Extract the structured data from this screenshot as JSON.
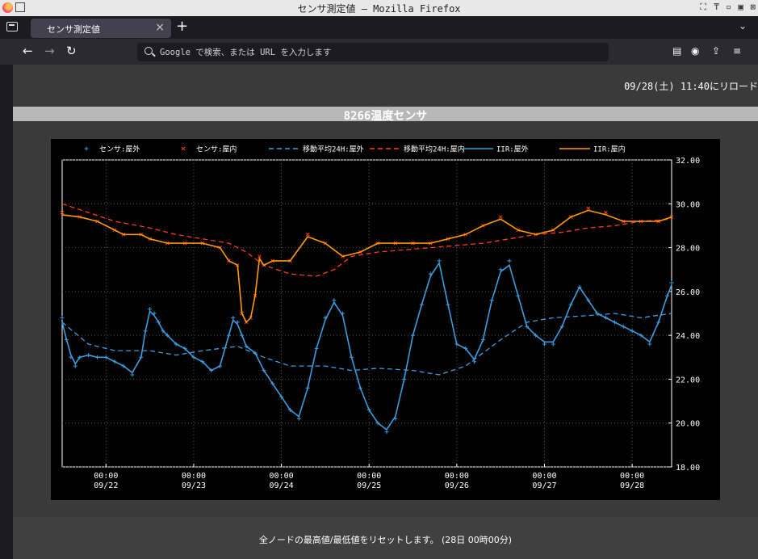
{
  "window": {
    "title": "センサ測定値 — Mozilla Firefox",
    "controls": [
      "⛶",
      "₸",
      "▫",
      "▣",
      "⊠"
    ]
  },
  "tabs": [
    {
      "label": "センサ測定値",
      "active": true
    }
  ],
  "newtab_label": "+",
  "urlbar": {
    "placeholder": "Google で検索、または URL を入力します",
    "icon": "search-icon"
  },
  "toolbar_icons": [
    "reader-icon",
    "account-icon",
    "extensions-icon",
    "menu-icon"
  ],
  "page": {
    "reload_info": "09/28(土) 11:40にリロード",
    "heading": "8266温度センサ",
    "footer_text": "全ノードの最高値/最低値をリセットします。 (28日 00時00分)"
  },
  "colors": {
    "outdoor_sensor": "#3b9ddd",
    "indoor_sensor": "#ff3a1a",
    "iir_indoor": "#ff9a00",
    "background": "#000000"
  },
  "chart_data": {
    "type": "line",
    "title": "",
    "xlabel": "",
    "ylabel": "",
    "ylim": [
      18,
      32
    ],
    "y_ticks": [
      "18.00",
      "20.00",
      "22.00",
      "24.00",
      "26.00",
      "28.00",
      "30.00",
      "32.00"
    ],
    "x_ticks": [
      {
        "x": 0.5,
        "line1": "00:00",
        "line2": "09/22"
      },
      {
        "x": 1.5,
        "line1": "00:00",
        "line2": "09/23"
      },
      {
        "x": 2.5,
        "line1": "00:00",
        "line2": "09/24"
      },
      {
        "x": 3.5,
        "line1": "00:00",
        "line2": "09/25"
      },
      {
        "x": 4.5,
        "line1": "00:00",
        "line2": "09/26"
      },
      {
        "x": 5.5,
        "line1": "00:00",
        "line2": "09/27"
      },
      {
        "x": 6.5,
        "line1": "00:00",
        "line2": "09/28"
      }
    ],
    "xlim": [
      0,
      6.95
    ],
    "grid": true,
    "legend_position": "top",
    "series": [
      {
        "name": "センサ:屋外",
        "style": "points",
        "marker": "+",
        "color": "#3b9ddd",
        "x": [
          0,
          0.05,
          0.1,
          0.15,
          0.2,
          0.3,
          0.4,
          0.5,
          0.6,
          0.7,
          0.8,
          0.9,
          0.95,
          1.0,
          1.05,
          1.1,
          1.15,
          1.2,
          1.3,
          1.4,
          1.5,
          1.6,
          1.7,
          1.8,
          1.9,
          1.95,
          2.0,
          2.05,
          2.1,
          2.2,
          2.3,
          2.4,
          2.5,
          2.6,
          2.7,
          2.8,
          2.9,
          3.0,
          3.1,
          3.2,
          3.3,
          3.4,
          3.5,
          3.6,
          3.7,
          3.8,
          3.9,
          4.0,
          4.1,
          4.2,
          4.3,
          4.4,
          4.5,
          4.6,
          4.7,
          4.8,
          4.9,
          5.0,
          5.1,
          5.2,
          5.3,
          5.4,
          5.5,
          5.6,
          5.7,
          5.8,
          5.9,
          6.0,
          6.1,
          6.2,
          6.3,
          6.4,
          6.5,
          6.6,
          6.7,
          6.8,
          6.9,
          6.95
        ],
        "y": [
          24.8,
          23.8,
          23.0,
          22.6,
          23.0,
          23.1,
          23.0,
          23.0,
          22.8,
          22.6,
          22.2,
          23.0,
          24.2,
          25.2,
          25.0,
          24.6,
          24.2,
          24.0,
          23.6,
          23.4,
          23.0,
          22.8,
          22.4,
          22.6,
          24.0,
          24.8,
          24.6,
          24.0,
          23.5,
          23.2,
          22.4,
          21.8,
          21.2,
          20.6,
          20.2,
          21.6,
          23.4,
          24.8,
          25.6,
          25.0,
          23.0,
          21.6,
          20.6,
          20.0,
          19.6,
          20.2,
          22.0,
          24.0,
          25.4,
          26.8,
          27.4,
          25.4,
          23.6,
          23.4,
          22.8,
          23.8,
          25.6,
          27.0,
          27.4,
          25.8,
          24.4,
          24.0,
          23.6,
          23.6,
          24.4,
          25.4,
          26.2,
          25.6,
          25.0,
          24.8,
          24.6,
          24.4,
          24.2,
          24.0,
          23.6,
          24.6,
          25.8,
          26.4
        ]
      },
      {
        "name": "センサ:屋内",
        "style": "points",
        "marker": "x",
        "color": "#ff3a1a",
        "x": [
          0,
          0.2,
          0.4,
          0.6,
          0.7,
          0.9,
          1.0,
          1.2,
          1.4,
          1.6,
          1.8,
          1.9,
          2.0,
          2.05,
          2.1,
          2.15,
          2.2,
          2.25,
          2.3,
          2.4,
          2.6,
          2.8,
          3.0,
          3.2,
          3.4,
          3.6,
          3.8,
          4.0,
          4.2,
          4.4,
          4.6,
          4.8,
          5.0,
          5.2,
          5.4,
          5.6,
          5.8,
          6.0,
          6.2,
          6.4,
          6.6,
          6.8,
          6.95
        ],
        "y": [
          29.6,
          29.4,
          29.2,
          28.8,
          28.6,
          28.6,
          28.4,
          28.2,
          28.2,
          28.2,
          28.0,
          27.4,
          27.2,
          25.0,
          24.6,
          24.8,
          25.8,
          27.6,
          27.2,
          27.4,
          27.4,
          28.6,
          28.2,
          27.6,
          27.8,
          28.2,
          28.2,
          28.2,
          28.2,
          28.4,
          28.6,
          29.0,
          29.4,
          28.8,
          28.6,
          28.8,
          29.4,
          29.8,
          29.6,
          29.2,
          29.2,
          29.2,
          29.4
        ]
      },
      {
        "name": "移動平均24H:屋外",
        "style": "dashed",
        "color": "#3b9ddd",
        "x": [
          0,
          0.3,
          0.6,
          1.0,
          1.3,
          1.6,
          2.0,
          2.3,
          2.6,
          3.0,
          3.3,
          3.6,
          4.0,
          4.3,
          4.6,
          5.0,
          5.3,
          5.6,
          6.0,
          6.3,
          6.6,
          6.95
        ],
        "y": [
          24.6,
          23.6,
          23.3,
          23.3,
          23.1,
          23.3,
          23.5,
          23.0,
          22.6,
          22.6,
          22.4,
          22.5,
          22.4,
          22.2,
          22.6,
          23.8,
          24.6,
          24.8,
          24.9,
          25.0,
          24.8,
          25.0
        ]
      },
      {
        "name": "移動平均24H:屋内",
        "style": "dashed",
        "color": "#ff3a1a",
        "x": [
          0,
          0.3,
          0.6,
          1.0,
          1.3,
          1.6,
          1.9,
          2.1,
          2.3,
          2.6,
          2.9,
          3.1,
          3.3,
          3.6,
          3.9,
          4.2,
          4.5,
          4.8,
          5.1,
          5.4,
          5.7,
          6.0,
          6.3,
          6.6,
          6.95
        ],
        "y": [
          30.0,
          29.6,
          29.2,
          28.9,
          28.6,
          28.4,
          28.2,
          27.8,
          27.2,
          26.8,
          26.7,
          27.0,
          27.6,
          27.8,
          27.9,
          28.0,
          28.1,
          28.2,
          28.4,
          28.6,
          28.7,
          28.9,
          29.0,
          29.2,
          29.3
        ]
      },
      {
        "name": "IIR:屋外",
        "style": "solid",
        "color": "#3b9ddd",
        "x": [
          0,
          0.05,
          0.1,
          0.15,
          0.2,
          0.3,
          0.4,
          0.5,
          0.6,
          0.7,
          0.8,
          0.9,
          0.95,
          1.0,
          1.05,
          1.1,
          1.15,
          1.2,
          1.3,
          1.4,
          1.5,
          1.6,
          1.7,
          1.8,
          1.9,
          1.95,
          2.0,
          2.05,
          2.1,
          2.2,
          2.3,
          2.4,
          2.5,
          2.6,
          2.7,
          2.8,
          2.9,
          3.0,
          3.1,
          3.2,
          3.3,
          3.4,
          3.5,
          3.6,
          3.7,
          3.8,
          3.9,
          4.0,
          4.1,
          4.2,
          4.3,
          4.4,
          4.5,
          4.6,
          4.7,
          4.8,
          4.9,
          5.0,
          5.1,
          5.2,
          5.3,
          5.4,
          5.5,
          5.6,
          5.7,
          5.8,
          5.9,
          6.0,
          6.1,
          6.2,
          6.3,
          6.4,
          6.5,
          6.6,
          6.7,
          6.8,
          6.9,
          6.95
        ],
        "y": [
          24.6,
          23.8,
          23.1,
          22.7,
          23.0,
          23.1,
          23.0,
          23.0,
          22.8,
          22.6,
          22.3,
          23.0,
          24.2,
          25.1,
          24.9,
          24.6,
          24.2,
          24.0,
          23.6,
          23.4,
          23.0,
          22.8,
          22.4,
          22.6,
          24.0,
          24.7,
          24.5,
          24.0,
          23.5,
          23.2,
          22.4,
          21.8,
          21.2,
          20.6,
          20.3,
          21.6,
          23.4,
          24.7,
          25.5,
          24.9,
          23.0,
          21.6,
          20.6,
          20.0,
          19.7,
          20.3,
          22.0,
          24.0,
          25.4,
          26.7,
          27.3,
          25.4,
          23.6,
          23.4,
          22.9,
          23.8,
          25.6,
          26.9,
          27.2,
          25.8,
          24.4,
          24.0,
          23.7,
          23.7,
          24.4,
          25.4,
          26.2,
          25.6,
          25.0,
          24.8,
          24.6,
          24.4,
          24.2,
          24.0,
          23.7,
          24.6,
          25.8,
          26.3
        ]
      },
      {
        "name": "IIR:屋内",
        "style": "solid",
        "color": "#ff9a00",
        "x": [
          0,
          0.2,
          0.4,
          0.6,
          0.7,
          0.9,
          1.0,
          1.2,
          1.4,
          1.6,
          1.8,
          1.9,
          2.0,
          2.05,
          2.1,
          2.15,
          2.2,
          2.25,
          2.3,
          2.4,
          2.6,
          2.8,
          3.0,
          3.2,
          3.4,
          3.6,
          3.8,
          4.0,
          4.2,
          4.4,
          4.6,
          4.8,
          5.0,
          5.2,
          5.4,
          5.6,
          5.8,
          6.0,
          6.2,
          6.4,
          6.6,
          6.8,
          6.95
        ],
        "y": [
          29.5,
          29.4,
          29.2,
          28.8,
          28.6,
          28.6,
          28.4,
          28.2,
          28.2,
          28.2,
          28.0,
          27.4,
          27.2,
          25.0,
          24.6,
          24.8,
          25.8,
          27.5,
          27.2,
          27.4,
          27.4,
          28.5,
          28.2,
          27.6,
          27.8,
          28.2,
          28.2,
          28.2,
          28.2,
          28.4,
          28.6,
          29.0,
          29.3,
          28.8,
          28.6,
          28.8,
          29.4,
          29.7,
          29.5,
          29.2,
          29.2,
          29.2,
          29.4
        ]
      }
    ]
  }
}
